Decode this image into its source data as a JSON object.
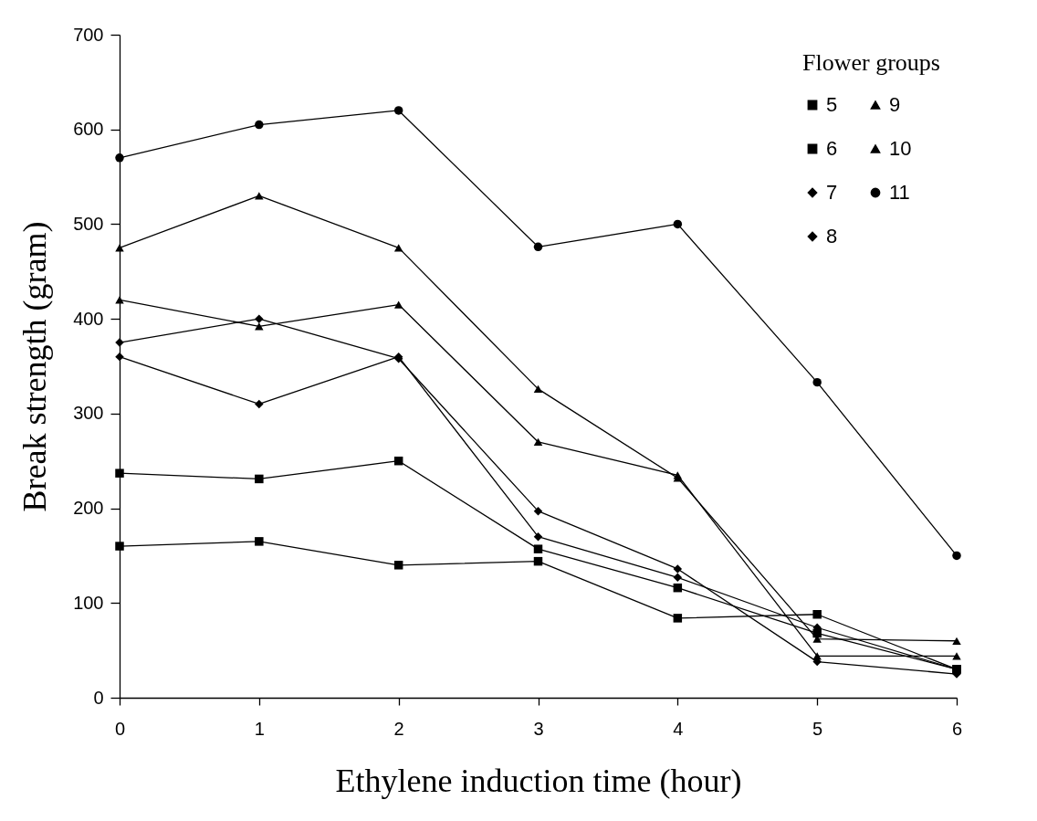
{
  "chart_data": {
    "type": "line",
    "xlabel": "Ethylene induction time (hour)",
    "ylabel": "Break strength (gram)",
    "legend_title": "Flower groups",
    "legend": "top right",
    "grid": false,
    "line_style": "solid",
    "x": [
      0,
      1,
      2,
      3,
      4,
      5,
      6
    ],
    "xlim": [
      0,
      6
    ],
    "xticks": [
      0,
      1,
      2,
      3,
      4,
      5,
      6
    ],
    "ylim": [
      0,
      700
    ],
    "yticks": [
      0,
      100,
      200,
      300,
      400,
      500,
      600,
      700
    ],
    "series": [
      {
        "name": "5",
        "color": "#000000",
        "marker": "square",
        "values": [
          160,
          165,
          140,
          144,
          84,
          88,
          30
        ]
      },
      {
        "name": "6",
        "color": "#000000",
        "marker": "square",
        "values": [
          237,
          231,
          250,
          157,
          116,
          68,
          30
        ]
      },
      {
        "name": "7",
        "color": "#000000",
        "marker": "diamond",
        "values": [
          360,
          310,
          360,
          170,
          127,
          74,
          30
        ]
      },
      {
        "name": "8",
        "color": "#000000",
        "marker": "diamond",
        "values": [
          375,
          400,
          358,
          197,
          136,
          38,
          25
        ]
      },
      {
        "name": "9",
        "color": "#000000",
        "marker": "triangle",
        "values": [
          420,
          392,
          415,
          270,
          235,
          44,
          44
        ]
      },
      {
        "name": "10",
        "color": "#000000",
        "marker": "triangle",
        "values": [
          475,
          530,
          475,
          326,
          232,
          62,
          60
        ]
      },
      {
        "name": "11",
        "color": "#000000",
        "marker": "circle",
        "values": [
          570,
          605,
          620,
          476,
          500,
          333,
          150
        ]
      }
    ]
  }
}
